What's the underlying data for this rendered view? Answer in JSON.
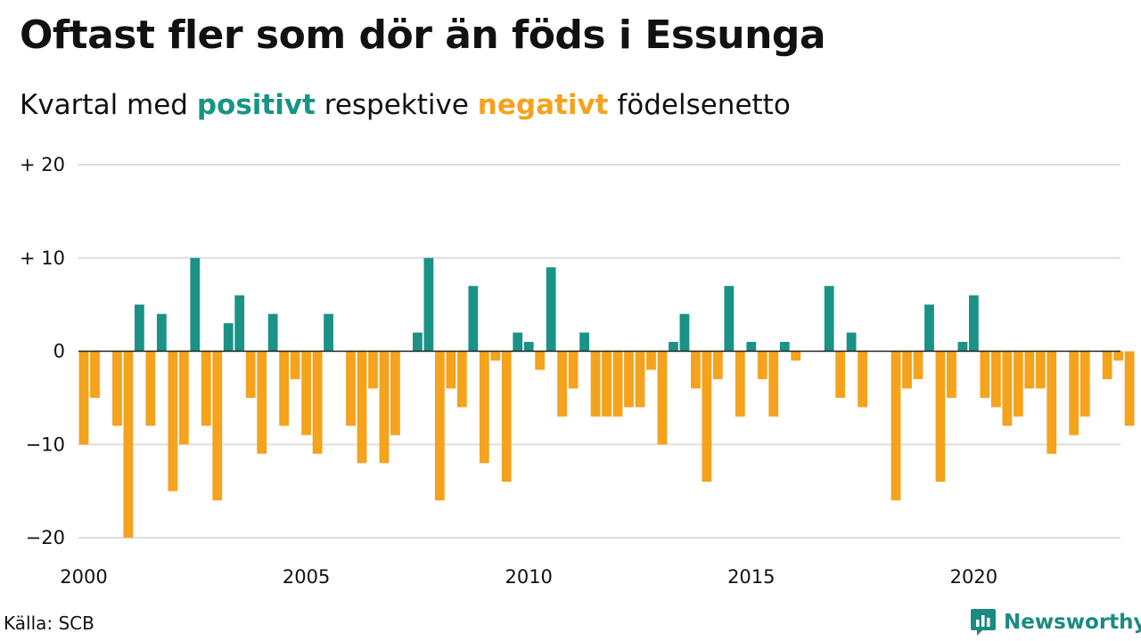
{
  "title": "Oftast fler som dör än föds i Essunga",
  "subtitle": {
    "prefix": "Kvartal med",
    "positive": "positivt",
    "middle": "respektive",
    "negative": "negativt",
    "suffix": "födelsenetto"
  },
  "colors": {
    "positive": "#1a9386",
    "negative": "#f5a21d",
    "grid": "#dddddd",
    "baseline": "#222222"
  },
  "source": "Källa: SCB",
  "brand": {
    "name": "Newsworthy",
    "icon": "newsworthy-logo-icon",
    "color": "#1b8a82"
  },
  "chart_data": {
    "type": "bar",
    "x_start": 2000,
    "frequency": "quarterly",
    "ylim": [
      -20,
      20
    ],
    "yticks": [
      20,
      10,
      0,
      -10,
      -20
    ],
    "ytick_labels": [
      "+ 20",
      "+ 10",
      "0",
      "−10",
      "−20"
    ],
    "xticks": [
      "2000",
      "2005",
      "2010",
      "2015",
      "2020"
    ],
    "grid": true,
    "values": [
      -10,
      -5,
      0,
      -8,
      -20,
      5,
      -8,
      4,
      -15,
      -10,
      10,
      -8,
      -16,
      3,
      6,
      -5,
      -11,
      4,
      -8,
      -3,
      -9,
      -11,
      4,
      0,
      -8,
      -12,
      -4,
      -12,
      -9,
      0,
      2,
      10,
      -16,
      -4,
      -6,
      7,
      -12,
      -1,
      -14,
      2,
      1,
      -2,
      9,
      -7,
      -4,
      2,
      -7,
      -7,
      -7,
      -6,
      -6,
      -2,
      -10,
      1,
      4,
      -4,
      -14,
      -3,
      7,
      -7,
      1,
      -3,
      -7,
      1,
      -1,
      0,
      0,
      7,
      -5,
      2,
      -6,
      0,
      0,
      -16,
      -4,
      -3,
      5,
      -14,
      -5,
      1,
      6,
      -5,
      -6,
      -8,
      -7,
      -4,
      -4,
      -11,
      0,
      -9,
      -7,
      0,
      -3,
      -1,
      -8
    ]
  }
}
